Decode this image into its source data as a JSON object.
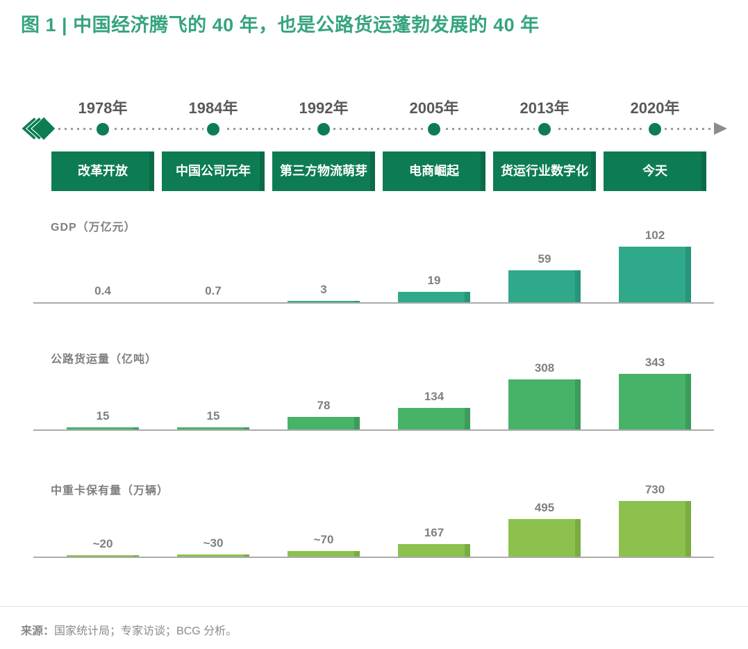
{
  "title": "图 1 | 中国经济腾飞的 40 年，也是公路货运蓬勃发展的 40 年",
  "timeline": {
    "milestones": [
      {
        "year": "1978年",
        "label": "改革开放"
      },
      {
        "year": "1984年",
        "label": "中国公司元年"
      },
      {
        "year": "1992年",
        "label": "第三方物流萌芽"
      },
      {
        "year": "2005年",
        "label": "电商崛起"
      },
      {
        "year": "2013年",
        "label": "货运行业数字化"
      },
      {
        "year": "2020年",
        "label": "今天"
      }
    ],
    "icons": [
      "rewind-chevrons-icon",
      "arrow-right-icon"
    ]
  },
  "chart_data": [
    {
      "type": "bar",
      "title": "GDP（万亿元）",
      "categories": [
        "1978年",
        "1984年",
        "1992年",
        "2005年",
        "2013年",
        "2020年"
      ],
      "values": [
        0.4,
        0.7,
        3,
        19,
        59,
        102
      ],
      "value_labels": [
        "0.4",
        "0.7",
        "3",
        "19",
        "59",
        "102"
      ],
      "bar_color": "#2FA98A",
      "bar_edge_color": "#27957A",
      "ylim": [
        0,
        102
      ],
      "grid": false,
      "legend": "none"
    },
    {
      "type": "bar",
      "title": "公路货运量（亿吨）",
      "categories": [
        "1978年",
        "1984年",
        "1992年",
        "2005年",
        "2013年",
        "2020年"
      ],
      "values": [
        15,
        15,
        78,
        134,
        308,
        343
      ],
      "value_labels": [
        "15",
        "15",
        "78",
        "134",
        "308",
        "343"
      ],
      "bar_color": "#47B369",
      "bar_edge_color": "#3C9C5B",
      "ylim": [
        0,
        343
      ],
      "grid": false,
      "legend": "none"
    },
    {
      "type": "bar",
      "title": "中重卡保有量（万辆）",
      "categories": [
        "1978年",
        "1984年",
        "1992年",
        "2005年",
        "2013年",
        "2020年"
      ],
      "values": [
        20,
        30,
        70,
        167,
        495,
        730
      ],
      "value_labels": [
        "~20",
        "~30",
        "~70",
        "167",
        "495",
        "730"
      ],
      "bar_color": "#8CC14E",
      "bar_edge_color": "#7AAC41",
      "ylim": [
        0,
        730
      ],
      "grid": false,
      "legend": "none"
    }
  ],
  "footer": {
    "source_label": "来源：",
    "source_text": "国家统计局；专家访谈；BCG 分析。"
  },
  "colors": {
    "title_green": "#35A47D",
    "timeline_green": "#0D7C53",
    "timeline_box_edge": "#0B6B48",
    "year_text": "#595959",
    "value_text": "#7F7F7F",
    "chart_title_text": "#7F7F7F",
    "axis_line": "#ABABAB",
    "dotted_line": "#9A9A9A",
    "arrow_gray": "#8C8C8C",
    "footer_text": "#8A8A8A"
  }
}
